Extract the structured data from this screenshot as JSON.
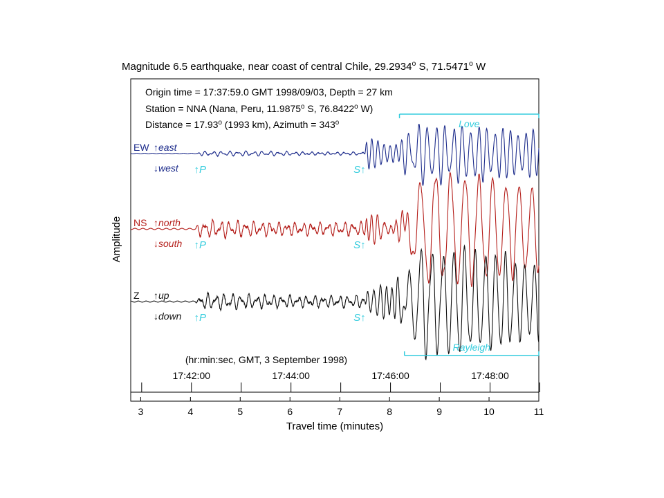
{
  "chart_data": {
    "type": "line",
    "title_parts": [
      "Magnitude 6.5 earthquake, near coast of central Chile, 29.2934",
      "o",
      " S, 71.5471",
      "o",
      " W"
    ],
    "info": {
      "line1": "Origin time = 17:37:59.0 GMT 1998/09/03, Depth = 27 km",
      "line2_parts": [
        "Station = NNA (Nana, Peru, 11.9875",
        "o",
        " S, 76.8422",
        "o",
        " W)"
      ],
      "line3_parts": [
        "Distance = 17.93",
        "o",
        " (1993 km), Azimuth = 343",
        "o"
      ]
    },
    "xlabel": "Travel time (minutes)",
    "ylabel": "Amplitude",
    "xlim": [
      2.8,
      11
    ],
    "xticks": [
      3,
      4,
      5,
      6,
      7,
      8,
      9,
      10,
      11
    ],
    "gmt_axis": {
      "caption": "(hr:min:sec, GMT, 3 September 1998)",
      "labels": [
        {
          "x": 4.02,
          "label": "17:42:00"
        },
        {
          "x": 6.02,
          "label": "17:44:00"
        },
        {
          "x": 8.02,
          "label": "17:46:00"
        },
        {
          "x": 10.02,
          "label": "17:48:00"
        }
      ],
      "minor_ticks": [
        3.02,
        5.02,
        7.02,
        9.02,
        11.02
      ]
    },
    "series": [
      {
        "name": "EW",
        "up_label": "east",
        "down_label": "west",
        "color": "#1e2d8c",
        "p_arrival": 4.1,
        "s_arrival": 7.5,
        "p_amp": 0.07,
        "s_amp": 0.65,
        "surface_start": 8.3,
        "surface_amp": 0.85,
        "surface_period": 0.19
      },
      {
        "name": "NS",
        "up_label": "north",
        "down_label": "south",
        "color": "#b5201c",
        "p_arrival": 4.1,
        "s_arrival": 7.5,
        "p_amp": 0.14,
        "s_amp": 0.28,
        "surface_start": 8.4,
        "surface_amp": 1.0,
        "surface_period": 0.32
      },
      {
        "name": "Z",
        "up_label": "up",
        "down_label": "down",
        "color": "#111111",
        "p_arrival": 4.1,
        "s_arrival": 7.5,
        "p_amp": 0.14,
        "s_amp": 0.45,
        "surface_start": 8.3,
        "surface_amp": 1.0,
        "surface_period": 0.24
      }
    ],
    "phase_labels": {
      "p": "P",
      "s": "S"
    },
    "surface_waves": [
      {
        "name": "Love",
        "x_start": 8.2,
        "x_end": 11.0,
        "position": "above-EW"
      },
      {
        "name": "Rayleigh",
        "x_start": 8.3,
        "x_end": 11.0,
        "position": "below-Z"
      }
    ]
  }
}
